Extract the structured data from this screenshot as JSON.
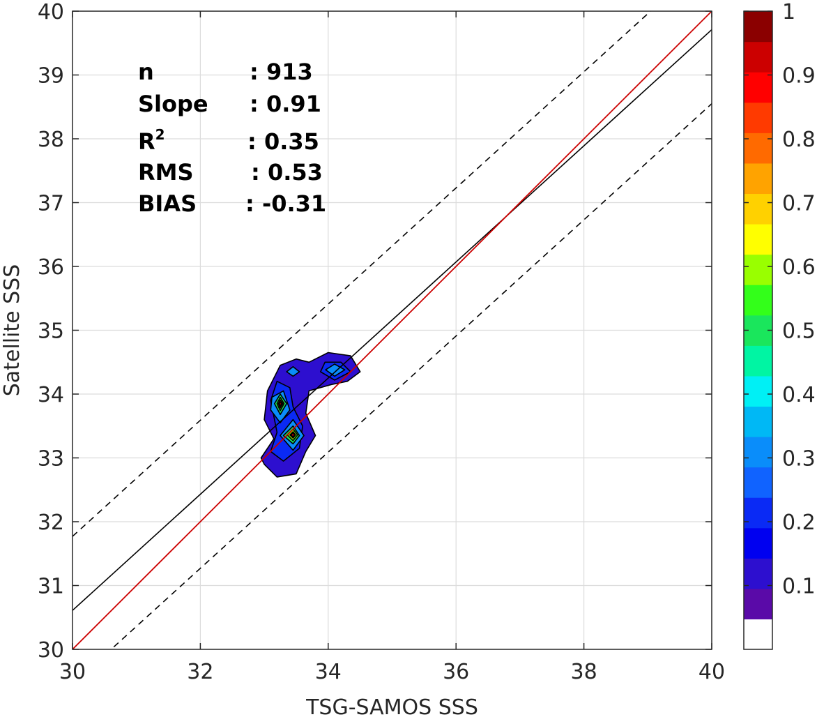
{
  "chart_data": {
    "type": "contour",
    "xlabel": "TSG-SAMOS SSS",
    "ylabel": "Satellite SSS",
    "xlim": [
      30,
      40
    ],
    "ylim": [
      30,
      40
    ],
    "x_ticks": [
      30,
      32,
      34,
      36,
      38,
      40
    ],
    "y_ticks": [
      30,
      31,
      32,
      33,
      34,
      35,
      36,
      37,
      38,
      39,
      40
    ],
    "grid": true,
    "stats": [
      {
        "label": "n",
        "sup": "",
        "value": ": 913"
      },
      {
        "label": "Slope",
        "sup": "",
        "value": ": 0.91"
      },
      {
        "label": "R",
        "sup": "2",
        "value": ": 0.35"
      },
      {
        "label": "RMS",
        "sup": "",
        "value": ": 0.53"
      },
      {
        "label": "BIAS",
        "sup": "",
        "value": ": -0.31"
      }
    ],
    "lines": {
      "one_to_one": {
        "color": "#cc0000",
        "start": [
          30,
          30
        ],
        "end": [
          40,
          40
        ]
      },
      "fit": {
        "color": "#000000",
        "slope": 0.91,
        "intercept": 3.31
      },
      "upper_bound": {
        "color": "#000000",
        "dashed": true,
        "slope": 0.91,
        "intercept": 4.47
      },
      "lower_bound": {
        "color": "#000000",
        "dashed": true,
        "slope": 0.91,
        "intercept": 2.15
      }
    },
    "density_regions": [
      {
        "level": 0.1,
        "outline": [
          [
            33.0,
            32.9
          ],
          [
            33.2,
            32.7
          ],
          [
            33.5,
            32.75
          ],
          [
            33.65,
            33.1
          ],
          [
            33.8,
            33.35
          ],
          [
            33.65,
            33.7
          ],
          [
            33.7,
            34.05
          ],
          [
            34.05,
            34.15
          ],
          [
            34.3,
            34.2
          ],
          [
            34.5,
            34.35
          ],
          [
            34.35,
            34.6
          ],
          [
            34.0,
            34.65
          ],
          [
            33.7,
            34.5
          ],
          [
            33.5,
            34.55
          ],
          [
            33.25,
            34.45
          ],
          [
            33.05,
            34.05
          ],
          [
            33.0,
            33.6
          ],
          [
            33.15,
            33.3
          ],
          [
            32.95,
            33.0
          ]
        ]
      },
      {
        "level": 0.2,
        "outline": [
          [
            33.1,
            33.1
          ],
          [
            33.3,
            32.95
          ],
          [
            33.55,
            33.15
          ],
          [
            33.6,
            33.5
          ],
          [
            33.45,
            33.8
          ],
          [
            33.4,
            34.1
          ],
          [
            33.2,
            34.2
          ],
          [
            33.1,
            33.9
          ],
          [
            33.2,
            33.4
          ]
        ]
      },
      {
        "level": 0.2,
        "outline": [
          [
            33.88,
            34.35
          ],
          [
            34.1,
            34.22
          ],
          [
            34.35,
            34.35
          ],
          [
            34.2,
            34.5
          ],
          [
            33.95,
            34.5
          ]
        ]
      },
      {
        "level": 0.3,
        "outline": [
          [
            33.1,
            33.75
          ],
          [
            33.25,
            33.55
          ],
          [
            33.4,
            33.75
          ],
          [
            33.3,
            34.05
          ],
          [
            33.12,
            33.95
          ]
        ]
      },
      {
        "level": 0.3,
        "outline": [
          [
            33.25,
            33.35
          ],
          [
            33.45,
            33.12
          ],
          [
            33.62,
            33.35
          ],
          [
            33.45,
            33.6
          ]
        ]
      },
      {
        "level": 0.3,
        "outline": [
          [
            33.96,
            34.38
          ],
          [
            34.1,
            34.28
          ],
          [
            34.26,
            34.38
          ],
          [
            34.1,
            34.47
          ]
        ]
      },
      {
        "level": 0.3,
        "outline": [
          [
            33.35,
            34.35
          ],
          [
            33.45,
            34.28
          ],
          [
            33.55,
            34.35
          ],
          [
            33.45,
            34.43
          ]
        ]
      },
      {
        "level": 0.5,
        "outline": [
          [
            33.16,
            33.85
          ],
          [
            33.25,
            33.68
          ],
          [
            33.35,
            33.85
          ],
          [
            33.25,
            34.0
          ]
        ]
      },
      {
        "level": 0.5,
        "outline": [
          [
            33.3,
            33.35
          ],
          [
            33.45,
            33.22
          ],
          [
            33.55,
            33.35
          ],
          [
            33.45,
            33.5
          ]
        ]
      },
      {
        "level": 0.6,
        "outline": [
          [
            33.2,
            33.85
          ],
          [
            33.25,
            33.74
          ],
          [
            33.31,
            33.85
          ],
          [
            33.25,
            33.95
          ]
        ]
      },
      {
        "level": 0.6,
        "outline": [
          [
            33.36,
            33.36
          ],
          [
            33.45,
            33.27
          ],
          [
            33.52,
            33.36
          ],
          [
            33.45,
            33.45
          ]
        ]
      },
      {
        "level": 0.8,
        "outline": [
          [
            33.22,
            33.85
          ],
          [
            33.25,
            33.78
          ],
          [
            33.29,
            33.85
          ],
          [
            33.25,
            33.91
          ]
        ]
      },
      {
        "level": 0.8,
        "outline": [
          [
            33.4,
            33.36
          ],
          [
            33.45,
            33.31
          ],
          [
            33.49,
            33.36
          ],
          [
            33.45,
            33.41
          ]
        ]
      },
      {
        "level": 1.0,
        "outline": [
          [
            33.235,
            33.85
          ],
          [
            33.25,
            33.81
          ],
          [
            33.275,
            33.85
          ],
          [
            33.25,
            33.88
          ]
        ]
      },
      {
        "level": 0.9,
        "outline": [
          [
            33.42,
            33.36
          ],
          [
            33.45,
            33.33
          ],
          [
            33.47,
            33.36
          ],
          [
            33.45,
            33.39
          ]
        ]
      }
    ],
    "colorbar": {
      "range": [
        0,
        1
      ],
      "ticks": [
        0.1,
        0.2,
        0.3,
        0.4,
        0.5,
        0.6,
        0.7,
        0.8,
        0.9,
        1
      ],
      "tick_labels": [
        "0.1",
        "0.2",
        "0.3",
        "0.4",
        "0.5",
        "0.6",
        "0.7",
        "0.8",
        "0.9",
        "1"
      ],
      "colors": [
        "#ffffff",
        "#5a0aa8",
        "#2d0fcf",
        "#0000f0",
        "#0a2af5",
        "#1063ff",
        "#0a8dfa",
        "#00b8f5",
        "#00f0f5",
        "#00f5a3",
        "#1ae65c",
        "#33ff1a",
        "#99ff00",
        "#ffff00",
        "#ffd100",
        "#ffa300",
        "#ff6a00",
        "#ff3a00",
        "#ff0000",
        "#cc0000",
        "#8b0000"
      ]
    }
  }
}
